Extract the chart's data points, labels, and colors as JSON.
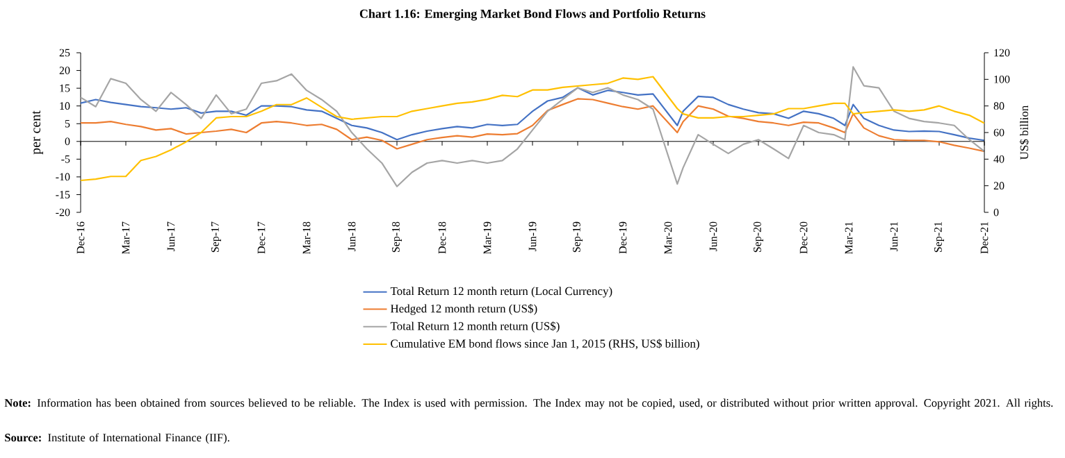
{
  "chart_data": {
    "type": "line",
    "title": "Chart 1.16: Emerging Market Bond Flows and Portfolio Returns",
    "ylabel": "per cent",
    "y2label": "US$ billion",
    "x": [
      "2016-12",
      "2017-01",
      "2017-02",
      "2017-03",
      "2017-04",
      "2017-05",
      "2017-06",
      "2017-07",
      "2017-08",
      "2017-09",
      "2017-10",
      "2017-11",
      "2017-12",
      "2018-01",
      "2018-02",
      "2018-03",
      "2018-04",
      "2018-05",
      "2018-06",
      "2018-07",
      "2018-08",
      "2018-09",
      "2018-10",
      "2018-11",
      "2018-12",
      "2019-01",
      "2019-02",
      "2019-03",
      "2019-04",
      "2019-05",
      "2019-06",
      "2019-07",
      "2019-08",
      "2019-09",
      "2019-10",
      "2019-11",
      "2019-12",
      "2020-01",
      "2020-02",
      "2020-03-20",
      "2020-04",
      "2020-05",
      "2020-06",
      "2020-07",
      "2020-08",
      "2020-09",
      "2020-10",
      "2020-11",
      "2020-12",
      "2021-01",
      "2021-02",
      "2021-02-24",
      "2021-03-10",
      "2021-04",
      "2021-05",
      "2021-06",
      "2021-07",
      "2021-08",
      "2021-09",
      "2021-10",
      "2021-11",
      "2021-12"
    ],
    "series": [
      {
        "name": "Total Return 12 month return (Local Currency)",
        "color": "#4472c4",
        "values": [
          10.8,
          11.8,
          11.0,
          10.4,
          9.8,
          9.5,
          9.1,
          9.5,
          8.0,
          8.5,
          8.5,
          7.4,
          10.0,
          10.0,
          9.8,
          8.9,
          8.5,
          6.5,
          4.5,
          3.8,
          2.5,
          0.5,
          1.9,
          2.9,
          3.6,
          4.2,
          3.8,
          4.8,
          4.5,
          4.8,
          8.5,
          11.4,
          12.4,
          15.1,
          13.1,
          14.4,
          13.8,
          13.1,
          13.4,
          4.5,
          8.5,
          12.7,
          12.4,
          10.4,
          9.1,
          8.1,
          7.8,
          6.5,
          8.5,
          7.8,
          6.5,
          4.5,
          10.4,
          6.5,
          4.5,
          3.2,
          2.8,
          2.9,
          2.8,
          1.9,
          0.9,
          0.3
        ]
      },
      {
        "name": "Hedged 12 month return (US$)",
        "color": "#ed7d31",
        "values": [
          5.2,
          5.2,
          5.6,
          4.8,
          4.2,
          3.2,
          3.6,
          2.1,
          2.5,
          2.9,
          3.4,
          2.5,
          5.2,
          5.6,
          5.2,
          4.5,
          4.8,
          3.4,
          0.5,
          1.2,
          0.3,
          -2.1,
          -0.8,
          0.5,
          1.1,
          1.6,
          1.2,
          2.1,
          1.9,
          2.2,
          4.5,
          8.7,
          10.4,
          12.0,
          11.8,
          10.8,
          9.8,
          9.1,
          10.0,
          2.5,
          5.6,
          10.0,
          9.1,
          7.1,
          6.5,
          5.6,
          5.2,
          4.5,
          5.4,
          5.2,
          3.8,
          2.5,
          7.8,
          3.8,
          1.6,
          0.5,
          0.3,
          0.3,
          -0.1,
          -1.1,
          -1.9,
          -2.8
        ]
      },
      {
        "name": "Total Return 12 month return (US$)",
        "color": "#a5a5a5",
        "values": [
          12.4,
          9.8,
          17.7,
          16.4,
          11.8,
          8.5,
          13.8,
          10.4,
          6.5,
          13.1,
          7.8,
          9.1,
          16.4,
          17.1,
          19.0,
          14.4,
          11.8,
          8.5,
          2.5,
          -2.1,
          -6.1,
          -12.7,
          -8.7,
          -6.1,
          -5.4,
          -6.1,
          -5.4,
          -6.1,
          -5.4,
          -2.1,
          3.2,
          8.5,
          11.8,
          15.1,
          13.8,
          15.1,
          13.1,
          11.8,
          9.1,
          -12.0,
          -7.4,
          1.9,
          -0.8,
          -3.4,
          -0.8,
          0.5,
          -2.1,
          -4.8,
          4.5,
          2.5,
          1.9,
          0.5,
          21.0,
          15.7,
          15.1,
          8.5,
          6.5,
          5.6,
          5.2,
          4.5,
          0.5,
          -2.8
        ]
      },
      {
        "name": "Cumulative EM bond flows since Jan 1, 2015 (RHS, US$ billion)",
        "color": "#ffc000",
        "axis": "y2",
        "values": [
          24,
          25,
          27,
          27,
          39,
          42,
          47,
          53,
          60,
          71,
          72,
          72,
          76,
          81,
          81,
          86,
          79,
          72,
          70,
          71,
          72,
          72,
          76,
          78,
          80,
          82,
          83,
          85,
          88,
          87,
          92,
          92,
          94,
          95,
          96,
          97,
          101,
          100,
          102,
          78,
          74,
          71,
          71,
          72,
          72,
          73,
          74,
          78,
          78,
          80,
          82,
          82,
          74,
          75,
          76,
          77,
          76,
          77,
          80,
          76,
          73,
          67
        ]
      }
    ],
    "xlim": [
      "2016-12",
      "2021-12"
    ],
    "xticks": [
      {
        "value": "2016-12",
        "label": "Dec-16"
      },
      {
        "value": "2017-03",
        "label": "Mar-17"
      },
      {
        "value": "2017-06",
        "label": "Jun-17"
      },
      {
        "value": "2017-09",
        "label": "Sep-17"
      },
      {
        "value": "2017-12",
        "label": "Dec-17"
      },
      {
        "value": "2018-03",
        "label": "Mar-18"
      },
      {
        "value": "2018-06",
        "label": "Jun-18"
      },
      {
        "value": "2018-09",
        "label": "Sep-18"
      },
      {
        "value": "2018-12",
        "label": "Dec-18"
      },
      {
        "value": "2019-03",
        "label": "Mar-19"
      },
      {
        "value": "2019-06",
        "label": "Jun-19"
      },
      {
        "value": "2019-09",
        "label": "Sep-19"
      },
      {
        "value": "2019-12",
        "label": "Dec-19"
      },
      {
        "value": "2020-03",
        "label": "Mar-20"
      },
      {
        "value": "2020-06",
        "label": "Jun-20"
      },
      {
        "value": "2020-09",
        "label": "Sep-20"
      },
      {
        "value": "2020-12",
        "label": "Dec-20"
      },
      {
        "value": "2021-03",
        "label": "Mar-21"
      },
      {
        "value": "2021-06",
        "label": "Jun-21"
      },
      {
        "value": "2021-09",
        "label": "Sep-21"
      },
      {
        "value": "2021-12",
        "label": "Dec-21"
      }
    ],
    "ylim": [
      -20,
      25
    ],
    "yticks": [
      -20,
      -15,
      -10,
      -5,
      0,
      5,
      10,
      15,
      20,
      25
    ],
    "y2lim": [
      0,
      120
    ],
    "y2ticks": [
      0,
      20,
      40,
      60,
      80,
      100,
      120
    ],
    "legend": "bottom",
    "annotations": [
      "**Note:** Information has been obtained from sources believed to be reliable. The Index is used with permission. The Index may not be copied, used, or distributed without prior written approval. Copyright 2021. All rights.",
      "**Source:** Institute of International Finance (IIF)."
    ]
  }
}
